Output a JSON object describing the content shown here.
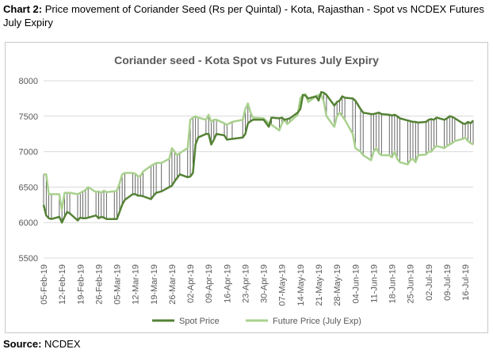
{
  "heading": {
    "label": "Chart 2:",
    "text": " Price movement of Coriander Seed (Rs per Quintal) - Kota, Rajasthan - Spot vs NCDEX Futures July Expiry"
  },
  "source": {
    "label": "Source:",
    "text": " NCDEX"
  },
  "colors": {
    "spot": "#548235",
    "future": "#a9d18e",
    "grid": "#d9d9d9",
    "connector": "#404040"
  },
  "chart_data": {
    "type": "line",
    "title": "Coriander seed - Kota Spot vs Futures July Expiry",
    "xlabel": "",
    "ylabel": "",
    "ylim": [
      5500,
      8000
    ],
    "y_ticks": [
      5500,
      6000,
      6500,
      7000,
      7500,
      8000
    ],
    "x_tick_labels": [
      "05-Feb-19",
      "12-Feb-19",
      "19-Feb-19",
      "26-Feb-19",
      "05-Mar-19",
      "12-Mar-19",
      "19-Mar-19",
      "26-Mar-19",
      "02-Apr-19",
      "09-Apr-19",
      "16-Apr-19",
      "23-Apr-19",
      "30-Apr-19",
      "07-May-19",
      "14-May-19",
      "21-May-19",
      "28-May-19",
      "04-Jun-19",
      "11-Jun-19",
      "18-Jun-19",
      "25-Jun-19",
      "02-Jul-19",
      "09-Jul-19",
      "16-Jul-19"
    ],
    "grid": "horizontal",
    "legend_position": "bottom",
    "x_start": "2019-02-05",
    "x_end": "2019-07-19",
    "series": [
      {
        "name": "Spot Price",
        "x": [
          "2019-02-05",
          "2019-02-06",
          "2019-02-07",
          "2019-02-08",
          "2019-02-11",
          "2019-02-12",
          "2019-02-13",
          "2019-02-14",
          "2019-02-15",
          "2019-02-18",
          "2019-02-19",
          "2019-02-20",
          "2019-02-21",
          "2019-02-22",
          "2019-02-25",
          "2019-02-26",
          "2019-02-27",
          "2019-02-28",
          "2019-03-01",
          "2019-03-04",
          "2019-03-05",
          "2019-03-06",
          "2019-03-07",
          "2019-03-08",
          "2019-03-11",
          "2019-03-12",
          "2019-03-13",
          "2019-03-14",
          "2019-03-15",
          "2019-03-18",
          "2019-03-19",
          "2019-03-20",
          "2019-03-22",
          "2019-03-25",
          "2019-03-26",
          "2019-03-27",
          "2019-03-28",
          "2019-03-29",
          "2019-04-01",
          "2019-04-02",
          "2019-04-03",
          "2019-04-04",
          "2019-04-05",
          "2019-04-08",
          "2019-04-09",
          "2019-04-10",
          "2019-04-11",
          "2019-04-12",
          "2019-04-15",
          "2019-04-16",
          "2019-04-18",
          "2019-04-22",
          "2019-04-23",
          "2019-04-24",
          "2019-04-25",
          "2019-04-26",
          "2019-04-30",
          "2019-05-02",
          "2019-05-03",
          "2019-05-06",
          "2019-05-07",
          "2019-05-08",
          "2019-05-09",
          "2019-05-10",
          "2019-05-13",
          "2019-05-14",
          "2019-05-15",
          "2019-05-16",
          "2019-05-17",
          "2019-05-20",
          "2019-05-21",
          "2019-05-22",
          "2019-05-23",
          "2019-05-24",
          "2019-05-27",
          "2019-05-28",
          "2019-05-29",
          "2019-05-30",
          "2019-05-31",
          "2019-06-03",
          "2019-06-04",
          "2019-06-06",
          "2019-06-07",
          "2019-06-10",
          "2019-06-11",
          "2019-06-12",
          "2019-06-13",
          "2019-06-14",
          "2019-06-17",
          "2019-06-18",
          "2019-06-19",
          "2019-06-20",
          "2019-06-21",
          "2019-06-24",
          "2019-06-25",
          "2019-06-26",
          "2019-06-27",
          "2019-06-28",
          "2019-07-01",
          "2019-07-02",
          "2019-07-03",
          "2019-07-04",
          "2019-07-05",
          "2019-07-08",
          "2019-07-09",
          "2019-07-10",
          "2019-07-11",
          "2019-07-12",
          "2019-07-15",
          "2019-07-16",
          "2019-07-17",
          "2019-07-18",
          "2019-07-19"
        ],
        "values": [
          6250,
          6100,
          6060,
          6050,
          6080,
          6000,
          6080,
          6150,
          6130,
          6030,
          6070,
          6060,
          6060,
          6070,
          6100,
          6060,
          6080,
          6070,
          6050,
          6050,
          6050,
          6150,
          6250,
          6320,
          6400,
          6400,
          6380,
          6380,
          6370,
          6330,
          6380,
          6420,
          6440,
          6500,
          6520,
          6580,
          6630,
          6680,
          6640,
          6650,
          6700,
          7100,
          7200,
          7250,
          7250,
          7100,
          7170,
          7250,
          7230,
          7170,
          7180,
          7200,
          7250,
          7400,
          7430,
          7450,
          7450,
          7350,
          7480,
          7470,
          7480,
          7450,
          7460,
          7470,
          7550,
          7600,
          7800,
          7790,
          7750,
          7780,
          7720,
          7840,
          7830,
          7800,
          7650,
          7700,
          7720,
          7780,
          7760,
          7750,
          7720,
          7600,
          7550,
          7530,
          7530,
          7540,
          7550,
          7530,
          7520,
          7510,
          7520,
          7500,
          7470,
          7440,
          7430,
          7420,
          7420,
          7410,
          7420,
          7450,
          7460,
          7450,
          7480,
          7450,
          7470,
          7500,
          7490,
          7470,
          7400,
          7390,
          7420,
          7400,
          7440
        ]
      },
      {
        "name": "Future Price (July Exp)",
        "x": [
          "2019-02-05",
          "2019-02-06",
          "2019-02-07",
          "2019-02-08",
          "2019-02-11",
          "2019-02-12",
          "2019-02-13",
          "2019-02-14",
          "2019-02-15",
          "2019-02-18",
          "2019-02-19",
          "2019-02-20",
          "2019-02-21",
          "2019-02-22",
          "2019-02-25",
          "2019-02-26",
          "2019-02-27",
          "2019-02-28",
          "2019-03-01",
          "2019-03-04",
          "2019-03-05",
          "2019-03-06",
          "2019-03-07",
          "2019-03-08",
          "2019-03-11",
          "2019-03-12",
          "2019-03-13",
          "2019-03-14",
          "2019-03-15",
          "2019-03-18",
          "2019-03-19",
          "2019-03-20",
          "2019-03-22",
          "2019-03-25",
          "2019-03-26",
          "2019-03-27",
          "2019-03-28",
          "2019-03-29",
          "2019-04-01",
          "2019-04-02",
          "2019-04-03",
          "2019-04-04",
          "2019-04-05",
          "2019-04-08",
          "2019-04-09",
          "2019-04-10",
          "2019-04-11",
          "2019-04-12",
          "2019-04-15",
          "2019-04-16",
          "2019-04-18",
          "2019-04-22",
          "2019-04-23",
          "2019-04-24",
          "2019-04-25",
          "2019-04-26",
          "2019-04-30",
          "2019-05-02",
          "2019-05-03",
          "2019-05-06",
          "2019-05-07",
          "2019-05-08",
          "2019-05-09",
          "2019-05-10",
          "2019-05-13",
          "2019-05-14",
          "2019-05-15",
          "2019-05-16",
          "2019-05-17",
          "2019-05-20",
          "2019-05-21",
          "2019-05-22",
          "2019-05-23",
          "2019-05-24",
          "2019-05-27",
          "2019-05-28",
          "2019-05-29",
          "2019-05-30",
          "2019-05-31",
          "2019-06-03",
          "2019-06-04",
          "2019-06-06",
          "2019-06-07",
          "2019-06-10",
          "2019-06-11",
          "2019-06-12",
          "2019-06-13",
          "2019-06-14",
          "2019-06-17",
          "2019-06-18",
          "2019-06-19",
          "2019-06-20",
          "2019-06-21",
          "2019-06-24",
          "2019-06-25",
          "2019-06-26",
          "2019-06-27",
          "2019-06-28",
          "2019-07-01",
          "2019-07-02",
          "2019-07-03",
          "2019-07-04",
          "2019-07-05",
          "2019-07-08",
          "2019-07-09",
          "2019-07-10",
          "2019-07-11",
          "2019-07-12",
          "2019-07-15",
          "2019-07-16",
          "2019-07-17",
          "2019-07-18",
          "2019-07-19"
        ],
        "values": [
          6680,
          6680,
          6400,
          6400,
          6400,
          6180,
          6420,
          6420,
          6420,
          6400,
          6420,
          6440,
          6460,
          6500,
          6430,
          6440,
          6420,
          6450,
          6430,
          6440,
          6450,
          6550,
          6680,
          6700,
          6700,
          6690,
          6650,
          6660,
          6720,
          6800,
          6820,
          6840,
          6840,
          6900,
          7050,
          7000,
          6950,
          6980,
          7050,
          7450,
          7480,
          7500,
          7480,
          7450,
          7520,
          7420,
          7450,
          7450,
          7400,
          7380,
          7420,
          7450,
          7600,
          7680,
          7550,
          7480,
          7470,
          7400,
          7380,
          7300,
          7400,
          7450,
          7390,
          7420,
          7520,
          7750,
          7800,
          7810,
          7700,
          7780,
          7800,
          7810,
          7700,
          7500,
          7350,
          7500,
          7550,
          7500,
          7450,
          7250,
          7050,
          7000,
          6950,
          6880,
          7000,
          7050,
          6980,
          6950,
          6950,
          6920,
          7000,
          6900,
          6850,
          6820,
          6880,
          6900,
          6850,
          6950,
          6960,
          7000,
          7000,
          7050,
          7080,
          7050,
          7080,
          7100,
          7120,
          7150,
          7180,
          7200,
          7150,
          7120,
          7100
        ]
      }
    ]
  }
}
